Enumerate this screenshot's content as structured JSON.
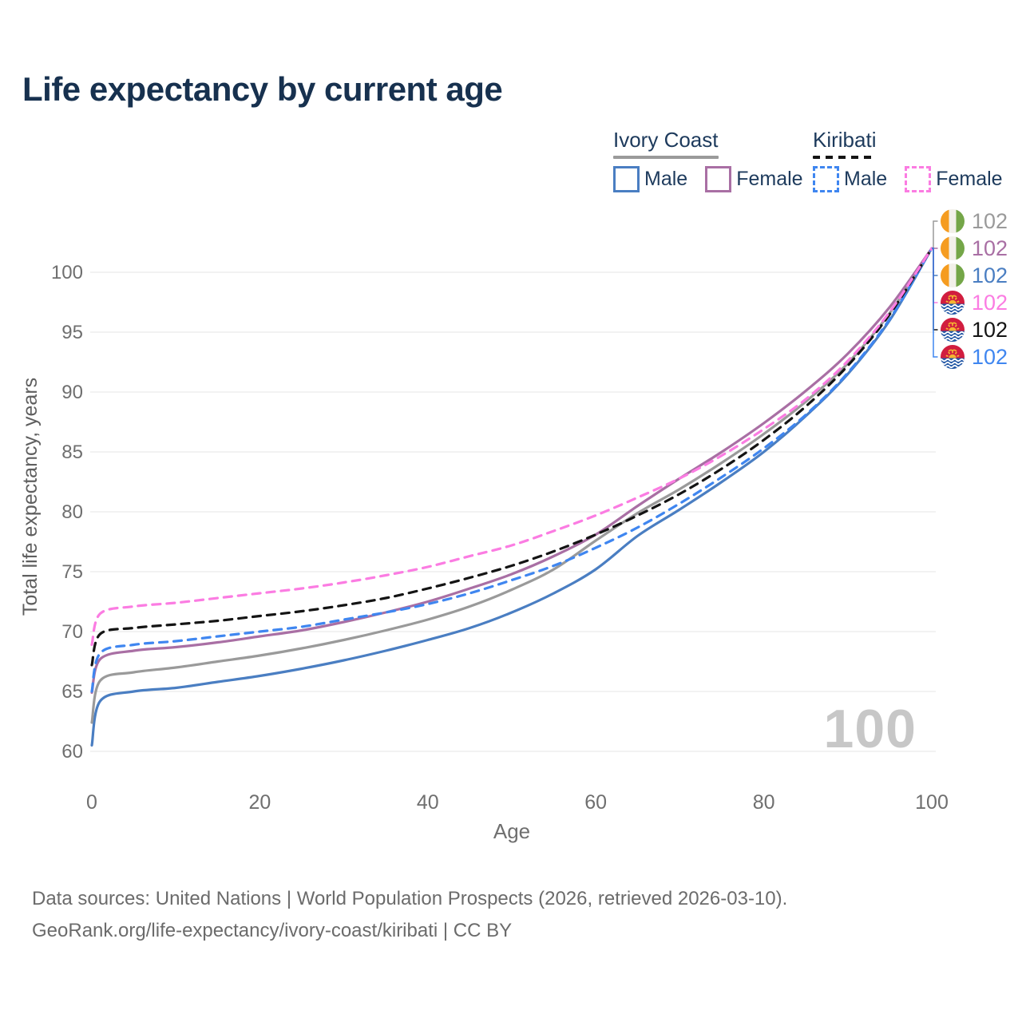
{
  "page": {
    "title": "Life expectancy by current age",
    "age_counter": "100",
    "footer": {
      "line1": "Data sources: United Nations | World Population Prospects (2026, retrieved 2026-03-10).",
      "line2": "GeoRank.org/life-expectancy/ivory-coast/kiribati | CC BY"
    }
  },
  "legend": {
    "groups": [
      {
        "country": "Ivory Coast",
        "line_style": "solid",
        "underline_color": "#9a9a9a",
        "items": [
          {
            "label": "Male",
            "color": "#4a7ec2",
            "dashed": false
          },
          {
            "label": "Female",
            "color": "#a96fa4",
            "dashed": false
          }
        ]
      },
      {
        "country": "Kiribati",
        "line_style": "dashed",
        "underline_color": "#141414",
        "items": [
          {
            "label": "Male",
            "color": "#3f86f0",
            "dashed": true
          },
          {
            "label": "Female",
            "color": "#fb7ce2",
            "dashed": true
          }
        ]
      }
    ]
  },
  "chart_data": {
    "type": "line",
    "title": "Life expectancy by current age",
    "xlabel": "Age",
    "ylabel": "Total life expectancy, years",
    "xlim": [
      0,
      100
    ],
    "ylim": [
      60,
      102
    ],
    "x_ticks": [
      0,
      20,
      40,
      60,
      80,
      100
    ],
    "y_ticks": [
      60,
      65,
      70,
      75,
      80,
      85,
      90,
      95,
      100
    ],
    "grid": "horizontal",
    "legend_position": "top-right",
    "ages": [
      0,
      1,
      5,
      10,
      15,
      20,
      25,
      30,
      35,
      40,
      45,
      50,
      55,
      60,
      65,
      70,
      75,
      80,
      85,
      90,
      95,
      100
    ],
    "series": [
      {
        "id": "ivory-coast-male",
        "country": "Ivory Coast",
        "sex": "Male",
        "color": "#4a7ec2",
        "dashed": false,
        "end_label": "102",
        "values": [
          60.5,
          64.2,
          65.0,
          65.3,
          65.8,
          66.3,
          66.9,
          67.6,
          68.4,
          69.3,
          70.3,
          71.6,
          73.2,
          75.2,
          78.0,
          80.2,
          82.5,
          85.0,
          88.0,
          91.5,
          96.0,
          102
        ]
      },
      {
        "id": "ivory-coast-all",
        "country": "Ivory Coast",
        "sex": "Both",
        "color": "#9a9a9a",
        "dashed": false,
        "end_label": "102",
        "values": [
          62.4,
          65.9,
          66.6,
          67.0,
          67.5,
          68.0,
          68.6,
          69.3,
          70.1,
          71.0,
          72.1,
          73.5,
          75.2,
          77.6,
          79.9,
          81.9,
          84.1,
          86.5,
          89.2,
          92.4,
          96.6,
          102
        ]
      },
      {
        "id": "ivory-coast-female",
        "country": "Ivory Coast",
        "sex": "Female",
        "color": "#a96fa4",
        "dashed": false,
        "end_label": "102",
        "values": [
          64.9,
          67.7,
          68.4,
          68.7,
          69.1,
          69.6,
          70.1,
          70.8,
          71.6,
          72.5,
          73.6,
          74.8,
          76.3,
          78.1,
          80.5,
          82.8,
          85.0,
          87.4,
          90.1,
          93.2,
          97.1,
          102
        ]
      },
      {
        "id": "kiribati-male",
        "country": "Kiribati",
        "sex": "Male",
        "color": "#3f86f0",
        "dashed": true,
        "end_label": "102",
        "values": [
          65.0,
          68.2,
          68.9,
          69.2,
          69.6,
          70.0,
          70.4,
          71.0,
          71.6,
          72.3,
          73.2,
          74.3,
          75.5,
          77.0,
          78.7,
          80.7,
          82.9,
          85.3,
          88.1,
          91.6,
          96.1,
          102
        ]
      },
      {
        "id": "kiribati-all",
        "country": "Kiribati",
        "sex": "Both",
        "color": "#141414",
        "dashed": true,
        "end_label": "102",
        "values": [
          67.2,
          69.8,
          70.3,
          70.6,
          70.9,
          71.3,
          71.7,
          72.2,
          72.8,
          73.6,
          74.5,
          75.5,
          76.7,
          78.1,
          79.7,
          81.5,
          83.6,
          86.0,
          88.8,
          92.2,
          96.5,
          102
        ]
      },
      {
        "id": "kiribati-female",
        "country": "Kiribati",
        "sex": "Female",
        "color": "#fb7ce2",
        "dashed": true,
        "end_label": "102",
        "values": [
          68.9,
          71.5,
          72.1,
          72.4,
          72.8,
          73.2,
          73.6,
          74.1,
          74.7,
          75.4,
          76.3,
          77.2,
          78.4,
          79.7,
          81.2,
          82.8,
          84.7,
          86.9,
          89.4,
          92.6,
          96.7,
          102
        ]
      }
    ],
    "end_labels_order": [
      "ivory-coast-all",
      "ivory-coast-female",
      "ivory-coast-male",
      "kiribati-female",
      "kiribati-all",
      "kiribati-male"
    ]
  },
  "flags": {
    "ivory_coast": {
      "orange": "#f59c20",
      "white": "#f2f0e9",
      "green": "#74a648"
    },
    "kiribati": {
      "red": "#d11d3f",
      "blue": "#2257a5",
      "gold": "#f5b432",
      "white": "#ffffff"
    }
  },
  "style_colors": {
    "grid": "#e9e9e9",
    "axis_text": "#6f6f6f",
    "axis_title": "#5f5f5f",
    "title_navy": "#17314f"
  }
}
